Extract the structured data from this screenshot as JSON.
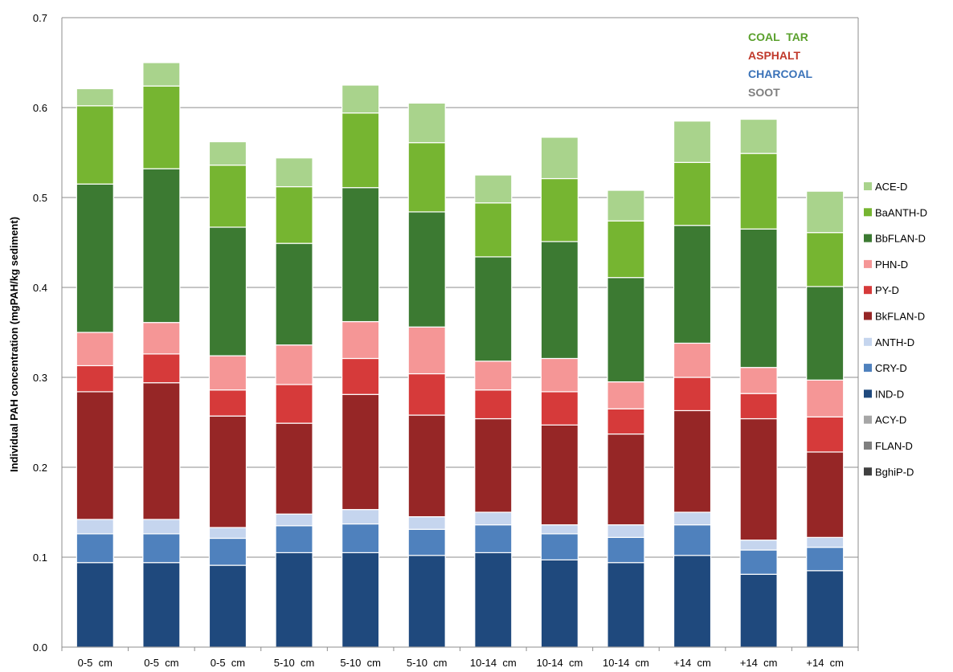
{
  "chart_data": {
    "type": "bar",
    "stacked": true,
    "xlabel": "",
    "ylabel": "Individual PAH concentration (mgPAH/kg sediment)",
    "ylim": [
      0,
      0.7
    ],
    "yticks": [
      "0.0",
      "0.1",
      "0.2",
      "0.3",
      "0.4",
      "0.5",
      "0.6",
      "0.7"
    ],
    "grid": true,
    "legend_position": "right",
    "categories": [
      "0-5  cm",
      "0-5  cm",
      "0-5  cm",
      "5-10  cm",
      "5-10  cm",
      "5-10  cm",
      "10-14  cm",
      "10-14  cm",
      "10-14  cm",
      "+14  cm",
      "+14  cm",
      "+14  cm"
    ],
    "series": [
      {
        "name": "BghiP-D",
        "color": "#404040",
        "values": [
          0,
          0,
          0,
          0,
          0,
          0,
          0,
          0,
          0,
          0,
          0,
          0
        ]
      },
      {
        "name": "FLAN-D",
        "color": "#7f7f7f",
        "values": [
          0,
          0,
          0,
          0,
          0,
          0,
          0,
          0,
          0,
          0,
          0,
          0
        ]
      },
      {
        "name": "ACY-D",
        "color": "#a6a6a6",
        "values": [
          0,
          0,
          0,
          0,
          0,
          0,
          0,
          0,
          0,
          0,
          0,
          0
        ]
      },
      {
        "name": "IND-D",
        "color": "#1f497d",
        "values": [
          0.094,
          0.094,
          0.091,
          0.105,
          0.105,
          0.102,
          0.105,
          0.097,
          0.094,
          0.102,
          0.081,
          0.085
        ]
      },
      {
        "name": "CRY-D",
        "color": "#4f81bd",
        "values": [
          0.032,
          0.032,
          0.03,
          0.03,
          0.032,
          0.029,
          0.031,
          0.029,
          0.028,
          0.034,
          0.027,
          0.026
        ]
      },
      {
        "name": "ANTH-D",
        "color": "#c5d5ee",
        "values": [
          0.016,
          0.016,
          0.012,
          0.013,
          0.016,
          0.014,
          0.014,
          0.01,
          0.014,
          0.014,
          0.011,
          0.011
        ]
      },
      {
        "name": "BkFLAN-D",
        "color": "#962626",
        "values": [
          0.142,
          0.152,
          0.124,
          0.101,
          0.128,
          0.113,
          0.104,
          0.111,
          0.101,
          0.113,
          0.135,
          0.095
        ]
      },
      {
        "name": "PY-D",
        "color": "#d63a3a",
        "values": [
          0.029,
          0.032,
          0.029,
          0.043,
          0.04,
          0.046,
          0.032,
          0.037,
          0.028,
          0.037,
          0.028,
          0.039
        ]
      },
      {
        "name": "PHN-D",
        "color": "#f59696",
        "values": [
          0.037,
          0.035,
          0.038,
          0.044,
          0.041,
          0.052,
          0.032,
          0.037,
          0.03,
          0.038,
          0.029,
          0.041
        ]
      },
      {
        "name": "BbFLAN-D",
        "color": "#3c7a32",
        "values": [
          0.165,
          0.171,
          0.143,
          0.113,
          0.149,
          0.128,
          0.116,
          0.13,
          0.116,
          0.131,
          0.154,
          0.104
        ]
      },
      {
        "name": "BaANTH-D",
        "color": "#76b531",
        "values": [
          0.087,
          0.092,
          0.069,
          0.063,
          0.083,
          0.077,
          0.06,
          0.07,
          0.063,
          0.07,
          0.084,
          0.06
        ]
      },
      {
        "name": "ACE-D",
        "color": "#a9d38c",
        "values": [
          0.019,
          0.026,
          0.026,
          0.032,
          0.031,
          0.044,
          0.031,
          0.046,
          0.034,
          0.046,
          0.038,
          0.046
        ]
      }
    ],
    "legend_order": [
      "ACE-D",
      "BaANTH-D",
      "BbFLAN-D",
      "PHN-D",
      "PY-D",
      "BkFLAN-D",
      "ANTH-D",
      "CRY-D",
      "IND-D",
      "ACY-D",
      "FLAN-D",
      "BghiP-D"
    ],
    "annotations": [
      {
        "text": "COAL  TAR",
        "color": "#5aa02c"
      },
      {
        "text": "ASPHALT",
        "color": "#c0392b"
      },
      {
        "text": "CHARCOAL",
        "color": "#3a72b8"
      },
      {
        "text": "SOOT",
        "color": "#7f7f7f"
      }
    ]
  }
}
